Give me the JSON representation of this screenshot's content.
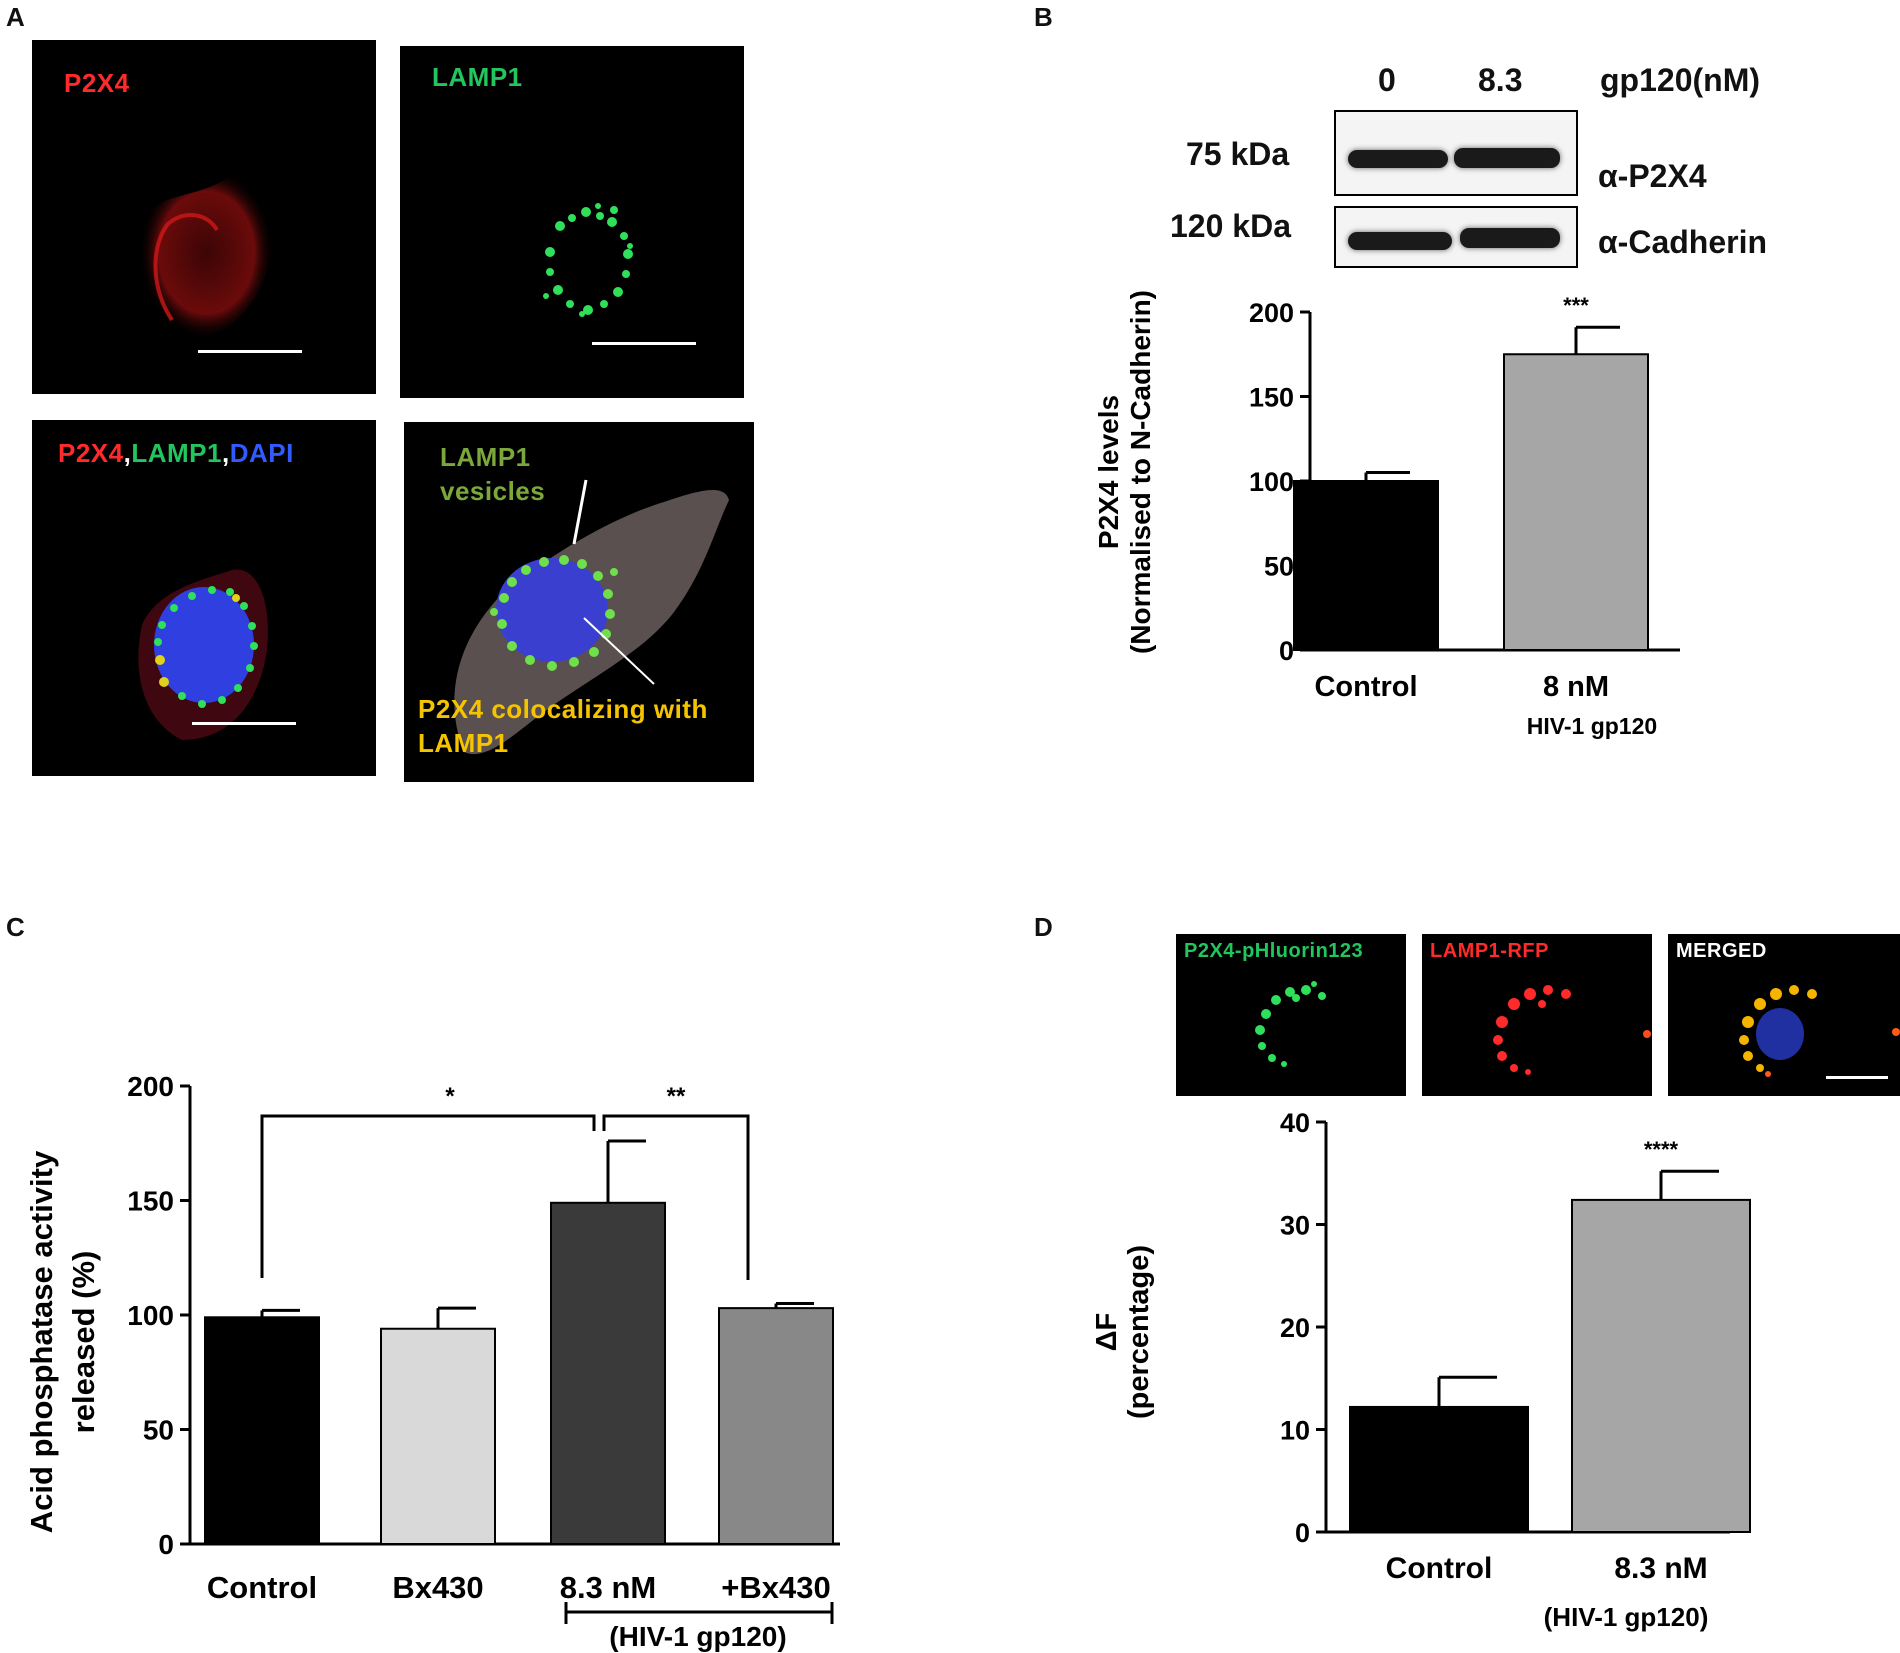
{
  "panel_letters": {
    "a": "A",
    "b": "B",
    "c": "C",
    "d": "D"
  },
  "panel_a": {
    "tiles": [
      {
        "label": "P2X4",
        "color": "#ff2a2a"
      },
      {
        "label": "LAMP1",
        "color": "#22c55e"
      }
    ],
    "merge_labels": {
      "p2x4": "P2X4",
      "comma1": ",",
      "lamp1": "LAMP1",
      "comma2": ",",
      "dapi": "DAPI"
    },
    "render_labels": {
      "vesicles_line1": "LAMP1",
      "vesicles_line2": "vesicles",
      "coloc_line1": "P2X4 colocalizing with",
      "coloc_line2": "LAMP1"
    },
    "colors": {
      "red": "#ff2a2a",
      "green": "#22c55e",
      "blue": "#2f5bff",
      "yellow": "#f5c400",
      "render_green": "#7aa83a"
    }
  },
  "panel_b": {
    "blot": {
      "lane_labels": [
        "0",
        "8.3"
      ],
      "treatment_label": "gp120(nM)",
      "rows": [
        {
          "mw": "75 kDa",
          "antibody": "α-P2X4"
        },
        {
          "mw": "120 kDa",
          "antibody": "α-Cadherin"
        }
      ]
    },
    "chart_data": {
      "type": "bar",
      "categories": [
        "Control",
        "8 nM"
      ],
      "category_sublabels": [
        "",
        "HIV-1 gp120"
      ],
      "values": [
        100,
        175
      ],
      "errors": [
        5,
        16
      ],
      "bar_colors": [
        "#000000",
        "#a6a6a6"
      ],
      "significance": [
        "",
        "***"
      ],
      "ylabel_line1": "P2X4 levels",
      "ylabel_line2": "(Normalised to N-Cadherin)",
      "ylim": [
        0,
        200
      ],
      "yticks": [
        0,
        50,
        100,
        150,
        200
      ],
      "grid": false
    }
  },
  "panel_c": {
    "chart_data": {
      "type": "bar",
      "categories": [
        "Control",
        "Bx430",
        "8.3 nM",
        "+Bx430"
      ],
      "values": [
        99,
        94,
        149,
        103
      ],
      "errors": [
        3,
        9,
        27,
        2
      ],
      "bar_colors": [
        "#000000",
        "#d9d9d9",
        "#3a3a3a",
        "#888888"
      ],
      "ylabel_line1": "Acid phosphatase activity",
      "ylabel_line2": "released (%)",
      "ylim": [
        0,
        200
      ],
      "yticks": [
        0,
        50,
        100,
        150,
        200
      ],
      "group_label": "(HIV-1 gp120)",
      "brackets": [
        {
          "from": "Control",
          "to": "8.3 nM",
          "label": "*"
        },
        {
          "from": "8.3 nM",
          "to": "+Bx430",
          "label": "**"
        }
      ],
      "grid": false
    }
  },
  "panel_d": {
    "tiles": [
      {
        "label": "P2X4-pHluorin123",
        "color": "#22c55e"
      },
      {
        "label": "LAMP1-RFP",
        "color": "#ff2a2a"
      },
      {
        "label": "MERGED",
        "color": "#ffffff"
      }
    ],
    "chart_data": {
      "type": "bar",
      "categories": [
        "Control",
        "8.3 nM"
      ],
      "values": [
        12.2,
        32.4
      ],
      "errors": [
        2.9,
        2.8
      ],
      "bar_colors": [
        "#000000",
        "#a6a6a6"
      ],
      "significance": [
        "",
        "****"
      ],
      "ylabel_line1": "ΔF",
      "ylabel_line2": "(percentage)",
      "ylim": [
        0,
        40
      ],
      "yticks": [
        0,
        10,
        20,
        30,
        40
      ],
      "group_label": "(HIV-1 gp120)",
      "grid": false
    }
  }
}
